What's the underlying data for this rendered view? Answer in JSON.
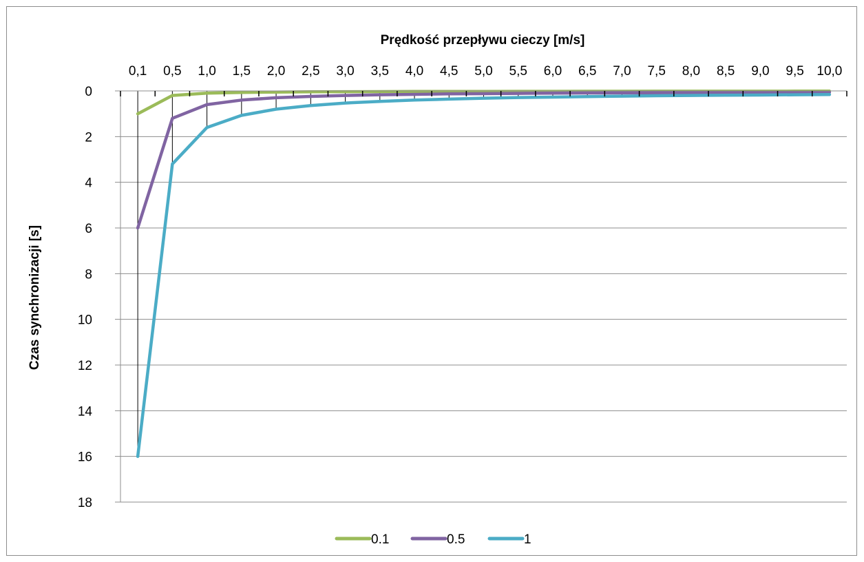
{
  "chart_data": {
    "type": "line",
    "title": "",
    "xlabel": "Prędkość przepływu cieczy [m/s]",
    "ylabel": "Czas synchronizacji [s]",
    "categories": [
      "0,1",
      "0,5",
      "1,0",
      "1,5",
      "2,0",
      "2,5",
      "3,0",
      "3,5",
      "4,0",
      "4,5",
      "5,0",
      "5,5",
      "6,0",
      "6,5",
      "7,0",
      "7,5",
      "8,0",
      "8,5",
      "9,0",
      "9,5",
      "10,0"
    ],
    "x_axis_position": "top",
    "y_axis_reversed": true,
    "ylim": [
      0,
      18
    ],
    "y_ticks": [
      0,
      2,
      4,
      6,
      8,
      10,
      12,
      14,
      16,
      18
    ],
    "grid": true,
    "drop_lines": true,
    "legend_position": "bottom",
    "series": [
      {
        "name": "0.1",
        "color": "#9BBB59",
        "values": [
          1.0,
          0.2,
          0.1,
          0.067,
          0.05,
          0.04,
          0.033,
          0.029,
          0.025,
          0.022,
          0.02,
          0.018,
          0.017,
          0.015,
          0.014,
          0.013,
          0.0125,
          0.012,
          0.011,
          0.0105,
          0.01
        ]
      },
      {
        "name": "0.5",
        "color": "#8064A2",
        "values": [
          6.0,
          1.2,
          0.6,
          0.4,
          0.3,
          0.24,
          0.2,
          0.17,
          0.15,
          0.13,
          0.12,
          0.11,
          0.1,
          0.09,
          0.086,
          0.08,
          0.075,
          0.07,
          0.067,
          0.063,
          0.06
        ]
      },
      {
        "name": "1",
        "color": "#4BACC6",
        "values": [
          16.0,
          3.2,
          1.6,
          1.07,
          0.8,
          0.64,
          0.53,
          0.46,
          0.4,
          0.36,
          0.32,
          0.29,
          0.27,
          0.25,
          0.23,
          0.21,
          0.2,
          0.19,
          0.18,
          0.17,
          0.16
        ]
      }
    ]
  }
}
